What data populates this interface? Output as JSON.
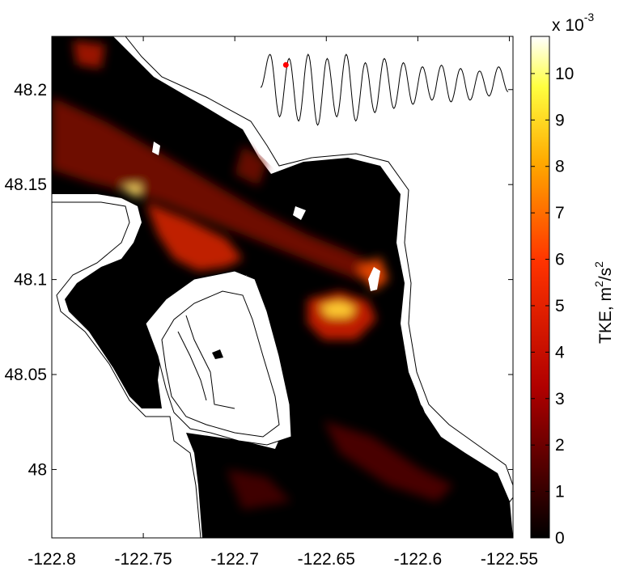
{
  "chart_data": {
    "type": "heatmap",
    "title": "",
    "xlabel": "",
    "ylabel": "",
    "xlim": [
      -122.8,
      -122.548
    ],
    "ylim": [
      47.964,
      48.228
    ],
    "x_ticks": [
      -122.8,
      -122.75,
      -122.7,
      -122.65,
      -122.6,
      -122.55
    ],
    "x_tick_labels": [
      "-122.8",
      "-122.75",
      "-122.7",
      "-122.65",
      "-122.6",
      "-122.55"
    ],
    "y_ticks": [
      48,
      48.05,
      48.1,
      48.15,
      48.2
    ],
    "y_tick_labels": [
      "48",
      "48.05",
      "48.1",
      "48.15",
      "48.2"
    ],
    "colorbar": {
      "label_base": "TKE, m",
      "label_sup1": "2",
      "label_mid": "/s",
      "label_sup2": "2",
      "multiplier_base": "x 10",
      "multiplier_exp": "-3",
      "range": [
        0,
        10.8
      ],
      "ticks": [
        0,
        1,
        2,
        3,
        4,
        5,
        6,
        7,
        8,
        9,
        10
      ],
      "tick_labels": [
        "0",
        "1",
        "2",
        "3",
        "4",
        "5",
        "6",
        "7",
        "8",
        "9",
        "10"
      ],
      "colormap": "hot"
    },
    "inset_series": {
      "description_values": [
        0.55,
        0.95,
        0.2,
        0.9,
        0.15,
        0.95,
        0.1,
        0.9,
        0.2,
        0.95,
        0.15,
        0.85,
        0.25,
        0.9,
        0.3,
        0.85,
        0.35,
        0.8,
        0.4,
        0.82,
        0.38,
        0.78,
        0.4,
        0.75,
        0.45,
        0.8,
        0.5
      ],
      "marker_index": 3,
      "marker_color": "#ff0000"
    },
    "colors": {
      "land": "#ffffff",
      "water_low": "#000000",
      "tke_mid": "#cc1a00",
      "tke_high": "#ffcc33"
    }
  }
}
